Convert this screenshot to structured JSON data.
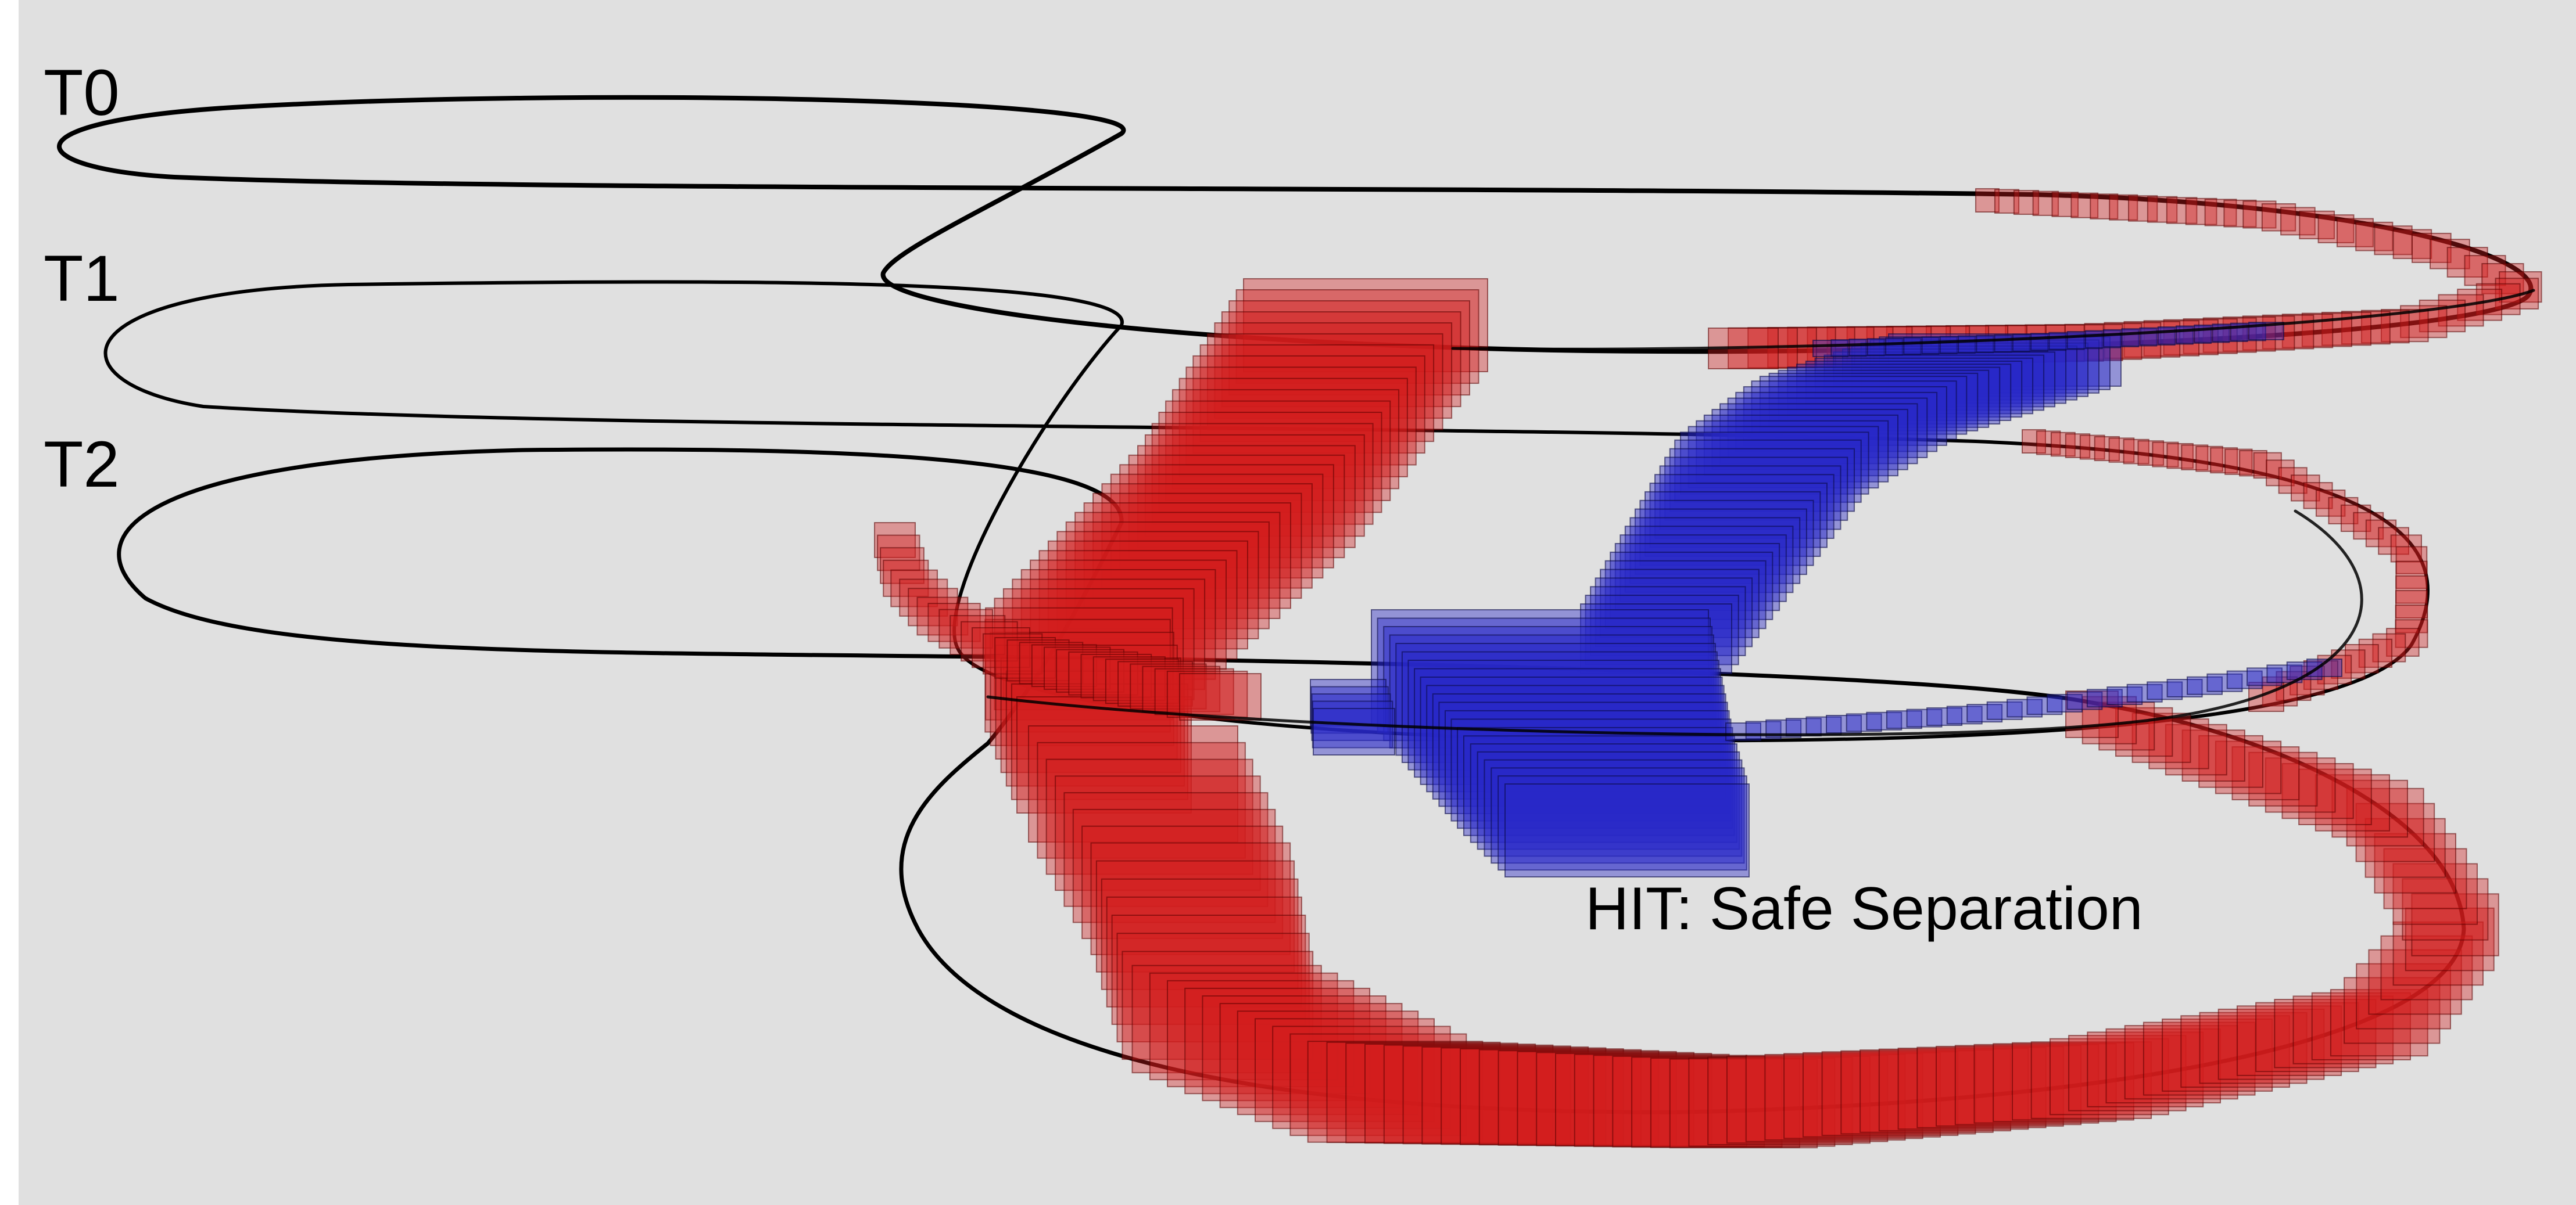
{
  "labels": {
    "t0": "T0",
    "t1": "T1",
    "t2": "T2",
    "result": "HIT: Safe Separation"
  },
  "colors": {
    "background": "#e0e0e0",
    "trajectory": "#000000",
    "red_volume": "#d21e1e",
    "blue_volume": "#2828c8"
  }
}
